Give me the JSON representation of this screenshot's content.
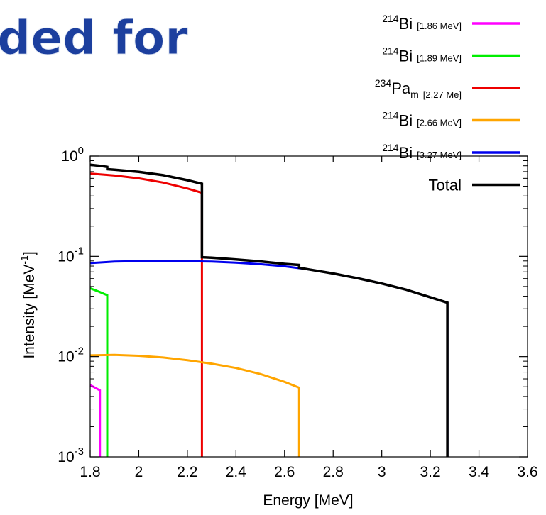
{
  "slide": {
    "heading_fragment": "ded for"
  },
  "chart_data": {
    "type": "line",
    "xlabel": "Energy [MeV]",
    "ylabel": {
      "text": "Intensity [MeV",
      "sup": "-1",
      "close": "]"
    },
    "xlim": [
      1.8,
      3.6
    ],
    "ylim": [
      0.001,
      1
    ],
    "yscale": "log",
    "grid": false,
    "legend_position": "top-right",
    "x_ticks": [
      "1.8",
      "2",
      "2.2",
      "2.4",
      "2.6",
      "2.8",
      "3",
      "3.2",
      "3.4",
      "3.6"
    ],
    "y_ticks": [
      {
        "base": "10",
        "exp": "0",
        "value": 1
      },
      {
        "base": "10",
        "exp": "-1",
        "value": 0.1
      },
      {
        "base": "10",
        "exp": "-2",
        "value": 0.01
      },
      {
        "base": "10",
        "exp": "-3",
        "value": 0.001
      }
    ],
    "series": [
      {
        "name": "214Bi [1.86 MeV]",
        "label_sup": "214",
        "label_main": "Bi",
        "label_sub": "",
        "label_note": "[1.86 MeV]",
        "color": "#ff00ff",
        "x": [
          1.8,
          1.82,
          1.84,
          1.84,
          1.84
        ],
        "y": [
          0.0052,
          0.0049,
          0.0046,
          0.0046,
          0.001
        ]
      },
      {
        "name": "214Bi [1.89 MeV]",
        "label_sup": "214",
        "label_main": "Bi",
        "label_sub": "",
        "label_note": "[1.89 MeV]",
        "color": "#00ee00",
        "x": [
          1.8,
          1.84,
          1.87,
          1.87
        ],
        "y": [
          0.048,
          0.044,
          0.041,
          0.001
        ]
      },
      {
        "name": "234Pam [2.27 Me]",
        "label_sup": "234",
        "label_main": "Pa",
        "label_sub": "m",
        "label_note": "[2.27 Me]",
        "color": "#ee0000",
        "x": [
          1.8,
          1.9,
          2.0,
          2.1,
          2.2,
          2.26,
          2.26
        ],
        "y": [
          0.67,
          0.64,
          0.6,
          0.545,
          0.475,
          0.43,
          0.001
        ]
      },
      {
        "name": "214Bi [2.66 MeV]",
        "label_sup": "214",
        "label_main": "Bi",
        "label_sub": "",
        "label_note": "[2.66 MeV]",
        "color": "#ffa500",
        "x": [
          1.8,
          1.9,
          2.0,
          2.1,
          2.2,
          2.3,
          2.4,
          2.5,
          2.6,
          2.66,
          2.66
        ],
        "y": [
          0.0103,
          0.0104,
          0.0102,
          0.0098,
          0.0092,
          0.0085,
          0.0077,
          0.0067,
          0.0056,
          0.0049,
          0.001
        ]
      },
      {
        "name": "214Bi [3.27 MeV]",
        "label_sup": "214",
        "label_main": "Bi",
        "label_sub": "",
        "label_note": "[3.27 MeV]",
        "color": "#0000ee",
        "x": [
          1.8,
          1.9,
          2.0,
          2.1,
          2.2,
          2.3,
          2.4,
          2.5,
          2.6,
          2.7,
          2.8,
          2.9,
          3.0,
          3.1,
          3.2,
          3.27,
          3.27
        ],
        "y": [
          0.0855,
          0.0885,
          0.0895,
          0.0897,
          0.0893,
          0.0885,
          0.0865,
          0.0835,
          0.0795,
          0.074,
          0.0675,
          0.0605,
          0.0535,
          0.0465,
          0.039,
          0.0345,
          0.001
        ]
      },
      {
        "name": "Total",
        "label_sup": "",
        "label_main": "Total",
        "label_sub": "",
        "label_note": "",
        "color": "#000000",
        "x": [
          1.8,
          1.84,
          1.84,
          1.87,
          1.87,
          1.9,
          2.0,
          2.1,
          2.2,
          2.26,
          2.26,
          2.3,
          2.4,
          2.5,
          2.6,
          2.66,
          2.66,
          2.7,
          2.8,
          2.9,
          3.0,
          3.1,
          3.2,
          3.27,
          3.27
        ],
        "y": [
          0.82,
          0.8,
          0.8,
          0.78,
          0.74,
          0.73,
          0.695,
          0.645,
          0.575,
          0.53,
          0.098,
          0.097,
          0.093,
          0.089,
          0.084,
          0.082,
          0.077,
          0.074,
          0.0675,
          0.0605,
          0.0535,
          0.0465,
          0.039,
          0.0345,
          0.001
        ]
      }
    ]
  }
}
